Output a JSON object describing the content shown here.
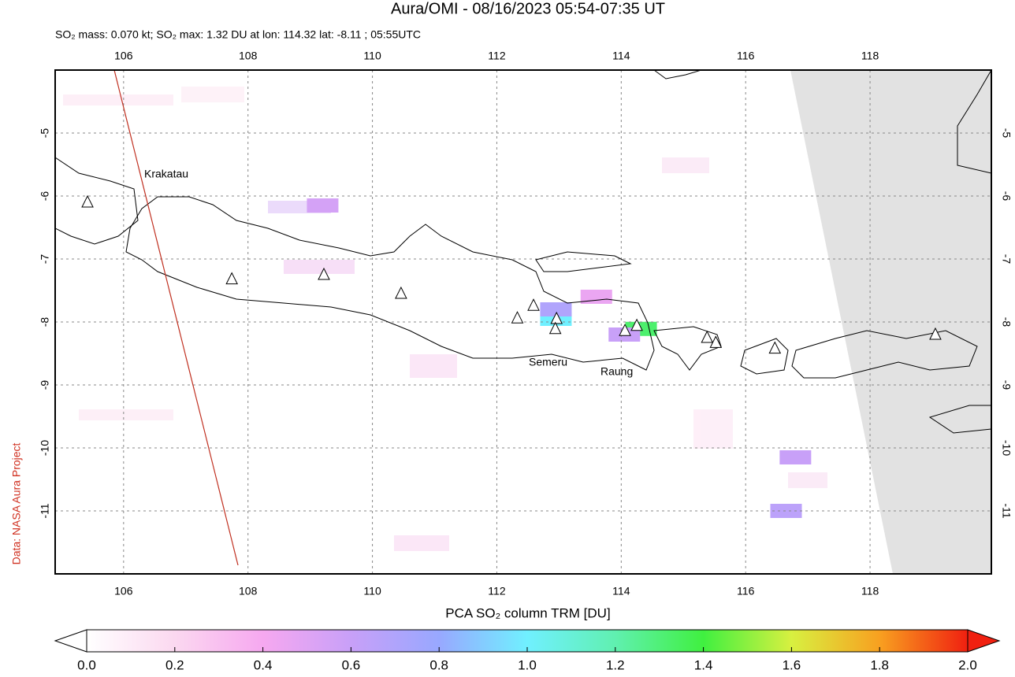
{
  "chart_data": {
    "type": "map",
    "title": "Aura/OMI - 08/16/2023 05:54-07:35 UT",
    "subtitle": "SO₂ mass: 0.070 kt; SO₂ max: 1.32 DU at lon: 114.32 lat: -8.11 ; 05:55UTC",
    "side_note": "Data: NASA Aura Project",
    "xlim": [
      104.9,
      119.95
    ],
    "ylim": [
      -12,
      -4
    ],
    "xticks": [
      106,
      108,
      110,
      112,
      114,
      116,
      118
    ],
    "yticks": [
      -5,
      -6,
      -7,
      -8,
      -9,
      -10,
      -11
    ],
    "grid": true,
    "volcano_labels": [
      "Krakatau",
      "Semeru",
      "Raung"
    ],
    "volcanoes": {
      "lon": [
        105.42,
        107.74,
        109.22,
        110.46,
        112.33,
        112.59,
        112.96,
        112.94,
        114.06,
        114.25,
        115.38,
        115.52,
        116.47,
        119.05
      ],
      "lat": [
        -6.1,
        -7.32,
        -7.25,
        -7.55,
        -7.94,
        -7.74,
        -7.95,
        -8.11,
        -8.14,
        -8.06,
        -8.25,
        -8.33,
        -8.42,
        -8.2
      ]
    },
    "pixels": {
      "lon": [
        114.32,
        112.95,
        112.95,
        114.05,
        109.2,
        116.8,
        116.65,
        113.6
      ],
      "lat": [
        -8.11,
        -7.95,
        -7.8,
        -8.2,
        -6.15,
        -10.15,
        -11.0,
        -7.6
      ],
      "values": [
        1.32,
        1.0,
        0.7,
        0.6,
        0.55,
        0.6,
        0.65,
        0.45
      ]
    },
    "colorbar": {
      "label": "PCA SO₂ column TRM [DU]",
      "lim": [
        0,
        2
      ],
      "ticks": [
        {
          "value": 0,
          "label": "0.0"
        },
        0.2,
        0.4,
        0.6,
        0.8,
        {
          "value": 1,
          "label": "1.0"
        },
        1.2,
        1.4,
        1.6,
        1.8,
        {
          "value": 2,
          "label": "2.0"
        }
      ]
    }
  }
}
